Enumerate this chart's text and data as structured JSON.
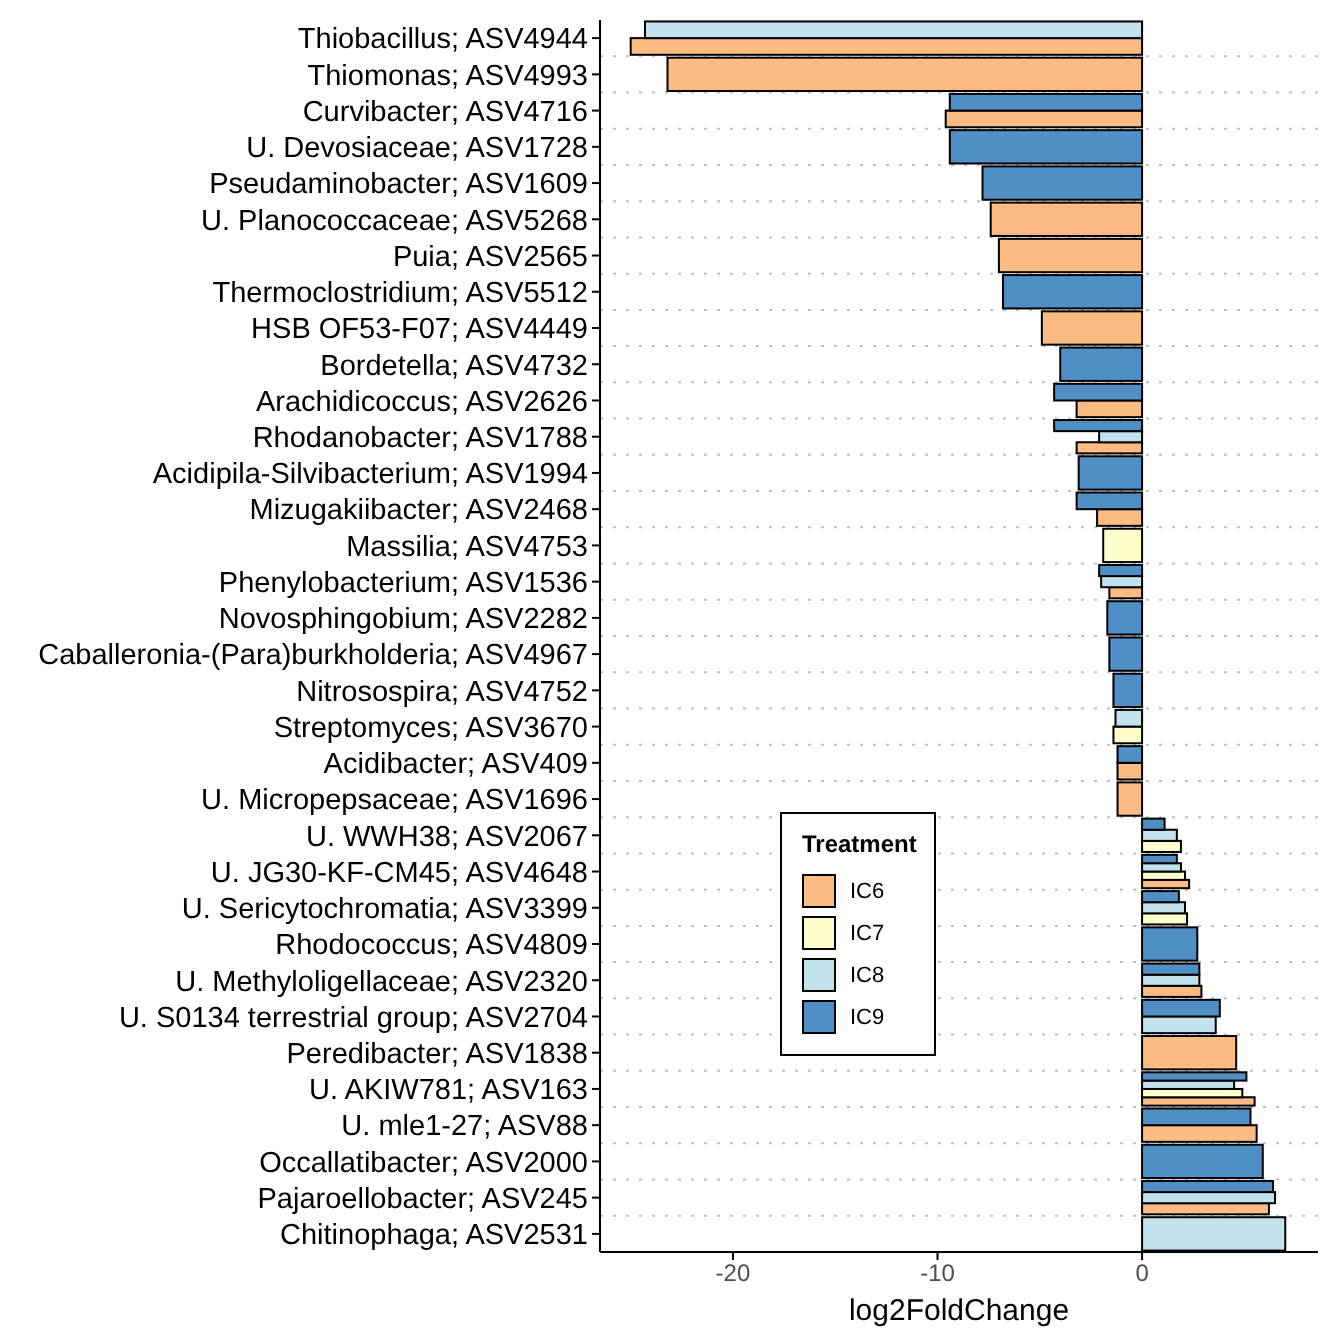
{
  "chart_data": {
    "type": "bar",
    "orientation": "horizontal",
    "xlabel": "log2FoldChange",
    "legend_title": "Treatment",
    "legend": "bottom left",
    "grid": "y",
    "xlim": [
      -26.5,
      8.6
    ],
    "xticks": [
      -20,
      -10,
      0
    ],
    "categories": [
      "Thiobacillus; ASV4944",
      "Thiomonas; ASV4993",
      "Curvibacter; ASV4716",
      "U. Devosiaceae; ASV1728",
      "Pseudaminobacter; ASV1609",
      "U. Planococcaceae; ASV5268",
      "Puia; ASV2565",
      "Thermoclostridium; ASV5512",
      "HSB OF53-F07; ASV4449",
      "Bordetella; ASV4732",
      "Arachidicoccus; ASV2626",
      "Rhodanobacter; ASV1788",
      "Acidipila-Silvibacterium; ASV1994",
      "Mizugakiibacter; ASV2468",
      "Massilia; ASV4753",
      "Phenylobacterium; ASV1536",
      "Novosphingobium; ASV2282",
      "Caballeronia-(Para)burkholderia; ASV4967",
      "Nitrosospira; ASV4752",
      "Streptomyces; ASV3670",
      "Acidibacter; ASV409",
      "U. Micropepsaceae; ASV1696",
      "U. WWH38; ASV2067",
      "U. JG30-KF-CM45; ASV4648",
      "U. Sericytochromatia; ASV3399",
      "Rhodococcus; ASV4809",
      "U. Methyloligellaceae; ASV2320",
      "U. S0134 terrestrial group; ASV2704",
      "Peredibacter; ASV1838",
      "U. AKIW781; ASV163",
      "U. mle1-27; ASV88",
      "Occallatibacter; ASV2000",
      "Pajaroellobacter; ASV245",
      "Chitinophaga; ASV2531"
    ],
    "series": [
      {
        "name": "IC6",
        "color": "#fdbb84",
        "values": [
          -25.0,
          -23.2,
          -9.6,
          null,
          null,
          -7.4,
          -7.0,
          null,
          -4.9,
          null,
          -3.2,
          -3.2,
          null,
          -2.2,
          null,
          -1.6,
          null,
          null,
          null,
          null,
          -1.2,
          -1.2,
          null,
          2.3,
          null,
          null,
          2.9,
          null,
          4.6,
          5.5,
          5.6,
          null,
          6.2,
          null
        ]
      },
      {
        "name": "IC7",
        "color": "#ffffcc",
        "values": [
          null,
          null,
          null,
          null,
          null,
          null,
          null,
          null,
          null,
          null,
          null,
          null,
          null,
          null,
          -1.9,
          null,
          null,
          null,
          null,
          -1.4,
          null,
          null,
          1.9,
          2.1,
          2.2,
          null,
          null,
          null,
          null,
          4.9,
          null,
          null,
          null,
          null
        ]
      },
      {
        "name": "IC8",
        "color": "#c2e2ee",
        "values": [
          -24.3,
          null,
          null,
          null,
          null,
          null,
          null,
          null,
          null,
          null,
          null,
          -2.1,
          null,
          null,
          null,
          -2.0,
          null,
          null,
          null,
          -1.3,
          null,
          null,
          1.7,
          1.9,
          2.1,
          null,
          2.8,
          3.6,
          null,
          4.5,
          null,
          null,
          6.5,
          7.0
        ]
      },
      {
        "name": "IC9",
        "color": "#4f8fc6",
        "values": [
          null,
          null,
          -9.4,
          -9.4,
          -7.8,
          null,
          null,
          -6.8,
          null,
          -4.0,
          -4.3,
          -4.3,
          -3.1,
          -3.2,
          null,
          -2.1,
          -1.7,
          -1.6,
          -1.4,
          null,
          -1.2,
          null,
          1.1,
          1.7,
          1.8,
          2.7,
          2.8,
          3.8,
          null,
          5.1,
          5.3,
          5.9,
          6.4,
          null
        ]
      }
    ]
  }
}
